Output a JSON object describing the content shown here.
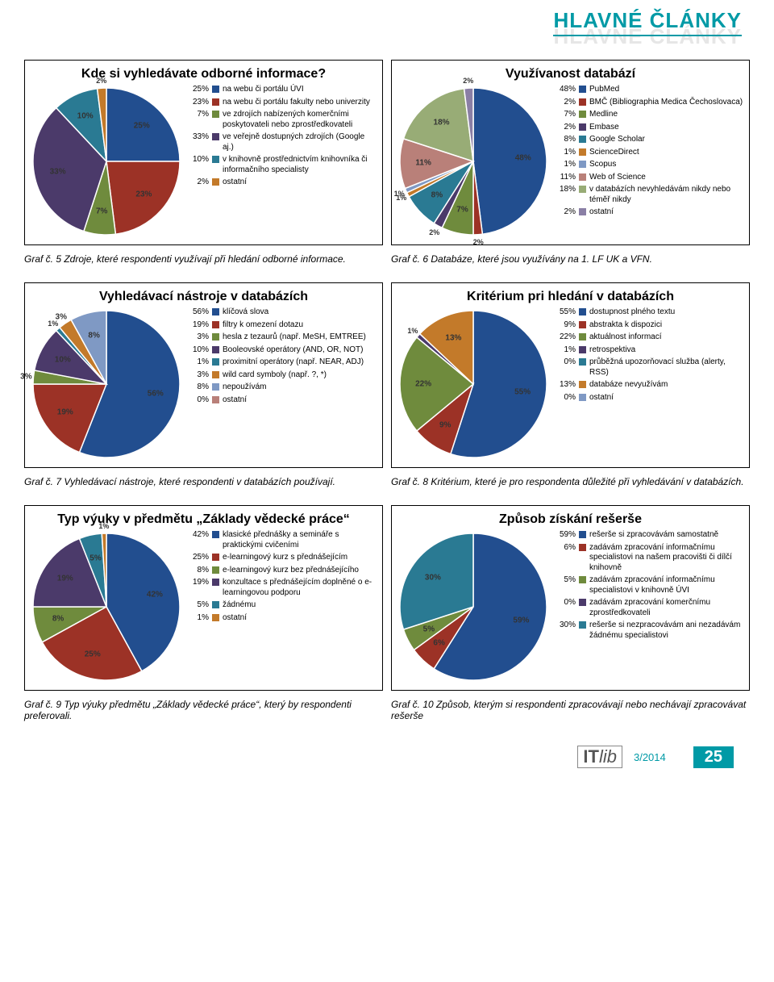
{
  "header": "HLAVNÉ ČLÁNKY",
  "palette": [
    "#224e8f",
    "#9c3226",
    "#6f8b3d",
    "#4b3a6a",
    "#2a7a93",
    "#c37a2a",
    "#7f99c4",
    "#b98079",
    "#98ac76",
    "#8a7fa5",
    "#73a7b5",
    "#d9b07a"
  ],
  "charts": [
    {
      "title": "Kde si vyhledávate odborné informace?",
      "type": "pie",
      "slices": [
        {
          "pct": 25,
          "label": "na webu či portálu ÚVI",
          "color": "#224e8f"
        },
        {
          "pct": 23,
          "label": "na webu či portálu fakulty nebo univerzity",
          "color": "#9c3226"
        },
        {
          "pct": 7,
          "label": "ve zdrojích nabízených komerčními poskytovateli nebo zprostředkovateli",
          "color": "#6f8b3d"
        },
        {
          "pct": 33,
          "label": "ve veřejně dostupných zdrojích (Google aj.)",
          "color": "#4b3a6a"
        },
        {
          "pct": 10,
          "label": "v knihovně prostřednictvím knihovníka či informačního specialisty",
          "color": "#2a7a93"
        },
        {
          "pct": 2,
          "label": "ostatní",
          "color": "#c37a2a"
        }
      ],
      "sliceLabels": [
        "25%",
        "23%",
        "7%",
        "33%",
        "10%",
        "2%"
      ]
    },
    {
      "title": "Využívanost databází",
      "type": "pie",
      "slices": [
        {
          "pct": 48,
          "label": "PubMed",
          "color": "#224e8f"
        },
        {
          "pct": 2,
          "label": "BMČ (Bibliographia Medica Čechoslovaca)",
          "color": "#9c3226"
        },
        {
          "pct": 7,
          "label": "Medline",
          "color": "#6f8b3d"
        },
        {
          "pct": 2,
          "label": "Embase",
          "color": "#4b3a6a"
        },
        {
          "pct": 8,
          "label": "Google Scholar",
          "color": "#2a7a93"
        },
        {
          "pct": 1,
          "label": "ScienceDirect",
          "color": "#c37a2a"
        },
        {
          "pct": 1,
          "label": "Scopus",
          "color": "#7f99c4"
        },
        {
          "pct": 11,
          "label": "Web of Science",
          "color": "#b98079"
        },
        {
          "pct": 18,
          "label": "v databázích nevyhledávám nikdy nebo téměř nikdy",
          "color": "#98ac76"
        },
        {
          "pct": 2,
          "label": "ostatní",
          "color": "#8a7fa5"
        }
      ]
    },
    {
      "title": "Vyhledávací nástroje v databázích",
      "type": "pie",
      "slices": [
        {
          "pct": 56,
          "label": "klíčová slova",
          "color": "#224e8f"
        },
        {
          "pct": 19,
          "label": "filtry k omezení dotazu",
          "color": "#9c3226"
        },
        {
          "pct": 3,
          "label": "hesla z tezaurů (např. MeSH, EMTREE)",
          "color": "#6f8b3d"
        },
        {
          "pct": 10,
          "label": "Booleovské operátory (AND, OR, NOT)",
          "color": "#4b3a6a"
        },
        {
          "pct": 1,
          "label": "proximitní operátory (např. NEAR, ADJ)",
          "color": "#2a7a93"
        },
        {
          "pct": 3,
          "label": "wild card symboly (např. ?, *)",
          "color": "#c37a2a"
        },
        {
          "pct": 8,
          "label": "nepoužívám",
          "color": "#7f99c4"
        },
        {
          "pct": 0,
          "label": "ostatní",
          "color": "#b98079"
        }
      ]
    },
    {
      "title": "Kritérium pri hledání v databázích",
      "type": "pie",
      "slices": [
        {
          "pct": 55,
          "label": "dostupnost plného textu",
          "color": "#224e8f"
        },
        {
          "pct": 9,
          "label": "abstrakta k dispozici",
          "color": "#9c3226"
        },
        {
          "pct": 22,
          "label": "aktuálnost informací",
          "color": "#6f8b3d"
        },
        {
          "pct": 1,
          "label": "retrospektiva",
          "color": "#4b3a6a"
        },
        {
          "pct": 0,
          "label": "průběžná upozorňovací služba (alerty, RSS)",
          "color": "#2a7a93"
        },
        {
          "pct": 13,
          "label": "databáze nevyužívám",
          "color": "#c37a2a"
        },
        {
          "pct": 0,
          "label": "ostatní",
          "color": "#7f99c4"
        }
      ]
    },
    {
      "title": "Typ výuky v předmětu „Základy vědecké práce“",
      "type": "pie",
      "slices": [
        {
          "pct": 42,
          "label": "klasické přednášky a semináře s praktickými cvičeními",
          "color": "#224e8f"
        },
        {
          "pct": 25,
          "label": "e-learningový kurz s přednášejícím",
          "color": "#9c3226"
        },
        {
          "pct": 8,
          "label": "e-learningový kurz bez přednášejícího",
          "color": "#6f8b3d"
        },
        {
          "pct": 19,
          "label": "konzultace s přednášejícím doplněné o e-learningovou podporu",
          "color": "#4b3a6a"
        },
        {
          "pct": 5,
          "label": "žádnému",
          "color": "#2a7a93"
        },
        {
          "pct": 1,
          "label": "ostatní",
          "color": "#c37a2a"
        }
      ]
    },
    {
      "title": "Způsob získání rešerše",
      "type": "pie",
      "slices": [
        {
          "pct": 59,
          "label": "rešerše si zpracovávám samostatně",
          "color": "#224e8f"
        },
        {
          "pct": 6,
          "label": "zadávám zpracování informačnímu specialistovi na našem pracovišti či dílčí knihovně",
          "color": "#9c3226"
        },
        {
          "pct": 5,
          "label": "zadávám zpracování informačnímu specialistovi v knihovně ÚVI",
          "color": "#6f8b3d"
        },
        {
          "pct": 0,
          "label": "zadávám zpracování komerčnímu zprostředkovateli",
          "color": "#4b3a6a"
        },
        {
          "pct": 30,
          "label": "rešerše si nezpracovávám ani nezadávám žádnému specialistovi",
          "color": "#2a7a93"
        }
      ]
    }
  ],
  "captions": [
    "Graf č. 5  Zdroje, které respondenti využívají při hledání odborné informace.",
    "Graf č. 6  Databáze, které jsou využívány na 1. LF UK a VFN.",
    "Graf č. 7  Vyhledávací nástroje, které respondenti v databázích používají.",
    "Graf č. 8  Kritérium, které je pro respondenta důležité při vyhledávání v databázích.",
    "Graf č. 9  Typ výuky předmětu „Základy vědecké práce“, který by respondenti preferovali.",
    "Graf č. 10  Způsob, kterým si respondenti zpracovávají nebo nechávají zpracovávat rešerše"
  ],
  "issue": "3/2014",
  "pageNum": "25",
  "logo": {
    "it": "IT",
    "lib": "lib"
  }
}
